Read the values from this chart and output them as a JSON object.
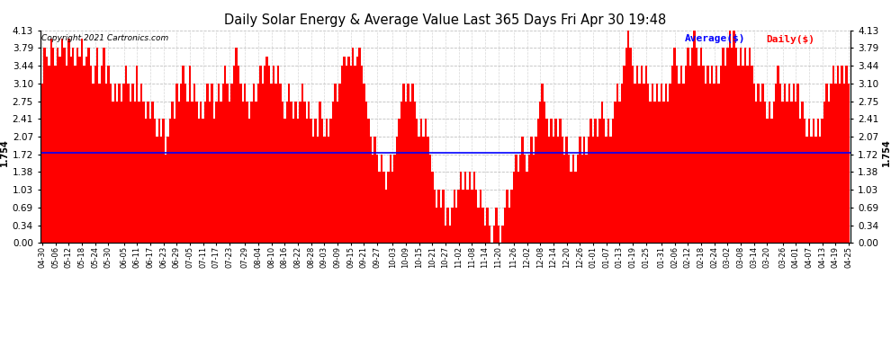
{
  "title": "Daily Solar Energy & Average Value Last 365 Days Fri Apr 30 19:48",
  "copyright": "Copyright 2021 Cartronics.com",
  "legend_average": "Average($)",
  "legend_daily": "Daily($)",
  "average_value": 1.754,
  "bar_color": "#ff0000",
  "average_line_color": "#0000ff",
  "background_color": "#ffffff",
  "plot_bg_color": "#ffffff",
  "grid_color": "#b0b0b0",
  "ylim": [
    0.0,
    4.13
  ],
  "yticks": [
    0.0,
    0.34,
    0.69,
    1.03,
    1.38,
    1.72,
    2.07,
    2.41,
    2.75,
    3.1,
    3.44,
    3.79,
    4.13
  ],
  "x_labels": [
    "04-30",
    "05-06",
    "05-12",
    "05-18",
    "05-24",
    "05-30",
    "06-05",
    "06-11",
    "06-17",
    "06-23",
    "06-29",
    "07-05",
    "07-11",
    "07-17",
    "07-23",
    "07-29",
    "08-04",
    "08-10",
    "08-16",
    "08-22",
    "08-28",
    "09-03",
    "09-09",
    "09-15",
    "09-21",
    "09-27",
    "10-03",
    "10-09",
    "10-15",
    "10-21",
    "10-27",
    "11-02",
    "11-08",
    "11-14",
    "11-20",
    "11-26",
    "12-02",
    "12-08",
    "12-14",
    "12-20",
    "12-26",
    "01-01",
    "01-07",
    "01-13",
    "01-19",
    "01-25",
    "01-31",
    "02-06",
    "02-12",
    "02-18",
    "02-24",
    "03-02",
    "03-08",
    "03-14",
    "03-20",
    "03-26",
    "04-01",
    "04-07",
    "04-13",
    "04-19",
    "04-25"
  ],
  "values": [
    3.1,
    3.79,
    3.62,
    3.45,
    3.96,
    3.79,
    3.45,
    3.79,
    3.62,
    3.96,
    3.79,
    3.45,
    3.96,
    3.62,
    3.79,
    3.45,
    3.79,
    3.62,
    3.96,
    3.45,
    3.62,
    3.79,
    3.45,
    3.1,
    3.45,
    3.79,
    3.1,
    3.45,
    3.79,
    3.1,
    3.45,
    3.1,
    2.75,
    3.1,
    2.75,
    3.1,
    2.75,
    3.1,
    3.45,
    3.1,
    2.75,
    3.1,
    2.75,
    3.45,
    2.75,
    3.1,
    2.75,
    2.41,
    2.75,
    2.41,
    2.75,
    2.41,
    2.07,
    2.41,
    2.07,
    2.41,
    1.72,
    2.07,
    2.41,
    2.75,
    2.41,
    3.1,
    2.75,
    3.1,
    3.45,
    3.1,
    2.75,
    3.45,
    2.75,
    3.1,
    2.75,
    2.41,
    2.75,
    2.41,
    2.75,
    3.1,
    2.75,
    3.1,
    2.41,
    2.75,
    3.1,
    2.75,
    3.1,
    3.45,
    3.1,
    2.75,
    3.1,
    3.45,
    3.79,
    3.45,
    3.1,
    2.75,
    3.1,
    2.75,
    2.41,
    2.75,
    3.1,
    2.75,
    3.1,
    3.45,
    3.1,
    3.45,
    3.62,
    3.45,
    3.1,
    3.45,
    3.1,
    3.45,
    3.1,
    2.75,
    2.41,
    2.75,
    3.1,
    2.75,
    2.41,
    2.75,
    2.41,
    2.75,
    3.1,
    2.75,
    2.41,
    2.75,
    2.41,
    2.07,
    2.41,
    2.07,
    2.75,
    2.41,
    2.07,
    2.41,
    2.07,
    2.41,
    2.75,
    3.1,
    2.75,
    3.1,
    3.45,
    3.62,
    3.45,
    3.62,
    3.45,
    3.79,
    3.45,
    3.62,
    3.79,
    3.45,
    3.1,
    2.75,
    2.41,
    2.07,
    1.72,
    2.07,
    1.72,
    1.38,
    1.72,
    1.38,
    1.03,
    1.38,
    1.72,
    1.38,
    1.72,
    2.07,
    2.41,
    2.75,
    3.1,
    2.75,
    3.1,
    2.75,
    3.1,
    2.75,
    2.41,
    2.07,
    2.41,
    2.07,
    2.41,
    2.07,
    1.72,
    1.38,
    1.03,
    0.69,
    1.03,
    0.69,
    1.03,
    0.34,
    0.69,
    0.34,
    0.69,
    1.03,
    0.69,
    1.03,
    1.38,
    1.03,
    1.38,
    1.03,
    1.38,
    1.03,
    1.38,
    1.03,
    0.69,
    1.03,
    0.69,
    0.34,
    0.69,
    0.34,
    0.0,
    0.34,
    0.69,
    0.34,
    0.0,
    0.34,
    0.69,
    1.03,
    0.69,
    1.03,
    1.38,
    1.72,
    1.38,
    1.72,
    2.07,
    1.72,
    1.38,
    1.72,
    2.07,
    1.72,
    2.07,
    2.41,
    2.75,
    3.1,
    2.75,
    2.41,
    2.07,
    2.41,
    2.07,
    2.41,
    2.07,
    2.41,
    2.07,
    1.72,
    2.07,
    1.72,
    1.38,
    1.72,
    1.38,
    1.72,
    2.07,
    1.72,
    2.07,
    1.72,
    2.07,
    2.41,
    2.07,
    2.41,
    2.07,
    2.41,
    2.75,
    2.41,
    2.07,
    2.41,
    2.07,
    2.41,
    2.75,
    3.1,
    2.75,
    3.1,
    3.45,
    3.79,
    4.13,
    3.79,
    3.45,
    3.1,
    3.45,
    3.1,
    3.45,
    3.1,
    3.45,
    3.1,
    2.75,
    3.1,
    2.75,
    3.1,
    2.75,
    3.1,
    2.75,
    3.1,
    2.75,
    3.1,
    3.45,
    3.79,
    3.45,
    3.1,
    3.45,
    3.1,
    3.45,
    3.79,
    3.45,
    3.79,
    4.13,
    3.79,
    3.45,
    3.79,
    3.45,
    3.1,
    3.45,
    3.1,
    3.45,
    3.1,
    3.45,
    3.1,
    3.45,
    3.79,
    3.45,
    3.79,
    4.13,
    3.79,
    4.13,
    3.79,
    3.45,
    3.79,
    3.45,
    3.79,
    3.45,
    3.79,
    3.45,
    3.1,
    2.75,
    3.1,
    2.75,
    3.1,
    2.75,
    2.41,
    2.75,
    2.41,
    2.75,
    3.1,
    3.45,
    3.1,
    2.75,
    3.1,
    2.75,
    3.1,
    2.75,
    3.1,
    2.75,
    3.1,
    2.41,
    2.75,
    2.41,
    2.07,
    2.41,
    2.07,
    2.41,
    2.07,
    2.41,
    2.07,
    2.41,
    2.75,
    3.1,
    2.75,
    3.1,
    3.45,
    3.1,
    3.45,
    3.1,
    3.45,
    3.1,
    3.45,
    3.1
  ]
}
